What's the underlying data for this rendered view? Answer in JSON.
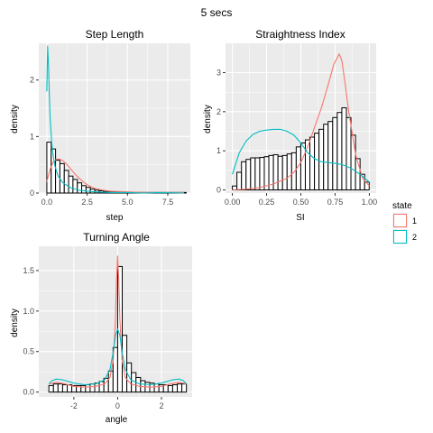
{
  "page_title": "5 secs",
  "colors": {
    "panel_bg": "#ebebeb",
    "grid": "#ffffff",
    "axis_text": "#4d4d4d",
    "hist_fill": "#ffffff",
    "hist_edge": "#000000",
    "state1": "#f8766d",
    "state2": "#00bfc4"
  },
  "legend": {
    "title": "state",
    "entries": [
      {
        "label": "1",
        "color": "#f8766d"
      },
      {
        "label": "2",
        "color": "#00bfc4"
      }
    ],
    "position": "right"
  },
  "chart_data": [
    {
      "type": "histogram",
      "title": "Step Length",
      "xlabel": "step",
      "ylabel": "density",
      "xlim": [
        -0.5,
        8.9
      ],
      "ylim": [
        0,
        2.65
      ],
      "xticks": [
        0,
        2.5,
        5,
        7.5
      ],
      "xtick_labels": [
        "0.0",
        "2.5",
        "5.0",
        "7.5"
      ],
      "yticks": [
        0,
        1,
        2
      ],
      "ytick_labels": [
        "0",
        "1",
        "2"
      ],
      "bins": {
        "start": 0,
        "width": 0.27,
        "values": [
          0.9,
          0.78,
          0.58,
          0.52,
          0.4,
          0.3,
          0.24,
          0.18,
          0.13,
          0.1,
          0.07,
          0.05,
          0.04,
          0.03,
          0.02,
          0.02,
          0.02,
          0.01,
          0.01,
          0.01,
          0.01,
          0.01,
          0.01,
          0.01,
          0.01,
          0.01,
          0.01,
          0.01,
          0.01,
          0.01,
          0.01,
          0.01
        ]
      },
      "series": [
        {
          "name": "1",
          "x": [
            0.0,
            0.2,
            0.4,
            0.6,
            0.8,
            1.0,
            1.2,
            1.5,
            1.8,
            2.2,
            2.6,
            3.0,
            3.5,
            4.0,
            5.0,
            6.0,
            7.0,
            8.5
          ],
          "y": [
            0.2,
            0.42,
            0.55,
            0.6,
            0.6,
            0.57,
            0.52,
            0.42,
            0.32,
            0.21,
            0.13,
            0.08,
            0.05,
            0.03,
            0.02,
            0.01,
            0.01,
            0.01
          ]
        },
        {
          "name": "2",
          "x": [
            0.0,
            0.05,
            0.1,
            0.15,
            0.2,
            0.3,
            0.4,
            0.5,
            0.7,
            1.0,
            1.5,
            2.0,
            3.0,
            4.0,
            5.0,
            6.0,
            7.0,
            8.5
          ],
          "y": [
            1.8,
            2.6,
            2.3,
            1.8,
            1.35,
            0.9,
            0.65,
            0.48,
            0.3,
            0.18,
            0.09,
            0.05,
            0.02,
            0.01,
            0.01,
            0.0,
            0.01,
            0.0
          ]
        }
      ]
    },
    {
      "type": "histogram",
      "title": "Straightness Index",
      "xlabel": "SI",
      "ylabel": "density",
      "xlim": [
        -0.05,
        1.05
      ],
      "ylim": [
        -0.08,
        3.75
      ],
      "xticks": [
        0,
        0.25,
        0.5,
        0.75,
        1.0
      ],
      "xtick_labels": [
        "0.00",
        "0.25",
        "0.50",
        "0.75",
        "1.00"
      ],
      "yticks": [
        0,
        1,
        2,
        3
      ],
      "ytick_labels": [
        "0",
        "1",
        "2",
        "3"
      ],
      "bins": {
        "start": 0,
        "width": 0.0333,
        "values": [
          0.1,
          0.45,
          0.72,
          0.78,
          0.82,
          0.82,
          0.83,
          0.85,
          0.88,
          0.9,
          0.86,
          0.88,
          0.92,
          0.95,
          1.1,
          1.2,
          1.28,
          1.35,
          1.45,
          1.55,
          1.68,
          1.75,
          1.85,
          1.98,
          2.1,
          1.85,
          1.4,
          0.8,
          0.4,
          0.2
        ]
      },
      "series": [
        {
          "name": "1",
          "x": [
            0.0,
            0.1,
            0.2,
            0.3,
            0.4,
            0.45,
            0.5,
            0.55,
            0.6,
            0.65,
            0.7,
            0.74,
            0.78,
            0.8,
            0.82,
            0.85,
            0.9,
            0.95,
            1.0
          ],
          "y": [
            0.0,
            0.02,
            0.06,
            0.15,
            0.3,
            0.45,
            0.7,
            1.1,
            1.6,
            2.1,
            2.7,
            3.2,
            3.48,
            3.3,
            2.8,
            2.0,
            0.9,
            0.3,
            0.1
          ]
        },
        {
          "name": "2",
          "x": [
            0.0,
            0.05,
            0.1,
            0.15,
            0.2,
            0.25,
            0.3,
            0.35,
            0.4,
            0.45,
            0.5,
            0.55,
            0.6,
            0.65,
            0.7,
            0.75,
            0.8,
            0.85,
            0.9,
            0.95,
            1.0
          ],
          "y": [
            0.4,
            0.95,
            1.25,
            1.42,
            1.5,
            1.53,
            1.55,
            1.55,
            1.5,
            1.4,
            1.2,
            0.95,
            0.8,
            0.72,
            0.7,
            0.68,
            0.65,
            0.58,
            0.48,
            0.35,
            0.2
          ]
        }
      ]
    },
    {
      "type": "histogram",
      "title": "Turning Angle",
      "xlabel": "angle",
      "ylabel": "density",
      "xlim": [
        -3.6,
        3.4
      ],
      "ylim": [
        -0.06,
        1.8
      ],
      "xticks": [
        -2,
        0,
        2
      ],
      "xtick_labels": [
        "-2",
        "0",
        "2"
      ],
      "yticks": [
        0,
        0.5,
        1,
        1.5
      ],
      "ytick_labels": [
        "0.0",
        "0.5",
        "1.0",
        "1.5"
      ],
      "bins": {
        "start": -3.14,
        "width": 0.2093,
        "values": [
          0.08,
          0.1,
          0.1,
          0.09,
          0.09,
          0.08,
          0.08,
          0.08,
          0.09,
          0.1,
          0.11,
          0.13,
          0.17,
          0.26,
          0.55,
          1.55,
          0.7,
          0.36,
          0.24,
          0.18,
          0.14,
          0.12,
          0.11,
          0.1,
          0.09,
          0.09,
          0.08,
          0.09,
          0.1,
          0.1
        ]
      },
      "series": [
        {
          "name": "1",
          "x": [
            -3.14,
            -2.8,
            -2.4,
            -2.0,
            -1.5,
            -1.0,
            -0.6,
            -0.35,
            -0.2,
            -0.1,
            -0.05,
            0.0,
            0.05,
            0.1,
            0.2,
            0.35,
            0.6,
            1.0,
            1.5,
            2.0,
            2.4,
            2.8,
            3.14
          ],
          "y": [
            0.1,
            0.12,
            0.1,
            0.07,
            0.06,
            0.07,
            0.1,
            0.18,
            0.4,
            0.9,
            1.4,
            1.68,
            1.4,
            0.9,
            0.4,
            0.18,
            0.1,
            0.07,
            0.06,
            0.07,
            0.1,
            0.12,
            0.1
          ]
        },
        {
          "name": "2",
          "x": [
            -3.14,
            -3.0,
            -2.8,
            -2.5,
            -2.0,
            -1.5,
            -1.0,
            -0.6,
            -0.35,
            -0.2,
            -0.1,
            0.0,
            0.1,
            0.2,
            0.35,
            0.6,
            1.0,
            1.5,
            2.0,
            2.5,
            2.8,
            3.0,
            3.14
          ],
          "y": [
            0.1,
            0.14,
            0.16,
            0.15,
            0.11,
            0.09,
            0.1,
            0.15,
            0.28,
            0.5,
            0.7,
            0.78,
            0.7,
            0.5,
            0.28,
            0.15,
            0.1,
            0.09,
            0.11,
            0.15,
            0.16,
            0.14,
            0.1
          ]
        }
      ]
    }
  ]
}
